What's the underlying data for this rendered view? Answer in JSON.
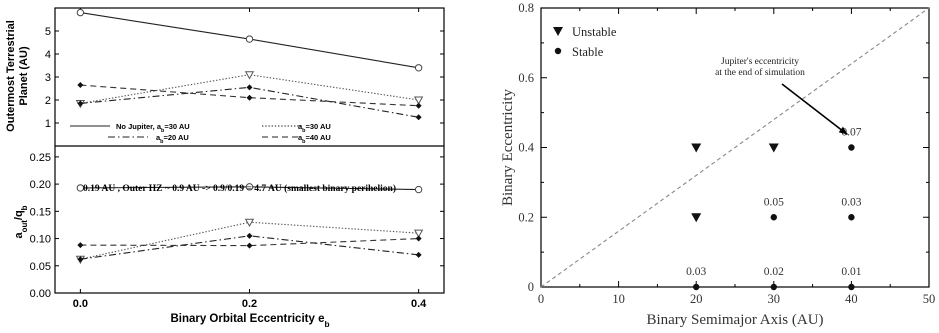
{
  "chart_data": [
    {
      "id": "left-top",
      "type": "line",
      "x": [
        0.0,
        0.2,
        0.4
      ],
      "ylabel": "Outermost Terrestrial Planet (AU)",
      "ylabel_lines": [
        "Outermost Terrestrial",
        "Planet (AU)"
      ],
      "xlim": [
        -0.03,
        0.43
      ],
      "ylim": [
        0,
        6
      ],
      "yticks": [
        0,
        1,
        2,
        3,
        4,
        5
      ],
      "xticks": [
        0.0,
        0.2,
        0.4
      ],
      "series": [
        {
          "name": "No Jupiter, a_b=30 AU",
          "style": "solid",
          "marker": "open-circle",
          "values": [
            5.8,
            4.65,
            3.4
          ]
        },
        {
          "name": "a_b=30 AU",
          "style": "dotted",
          "marker": "open-triangle-down",
          "values": [
            1.85,
            3.1,
            2.0
          ]
        },
        {
          "name": "a_b=20 AU",
          "style": "dashdot",
          "marker": "filled-diamond",
          "values": [
            1.85,
            2.55,
            1.25
          ]
        },
        {
          "name": "a_b=40 AU",
          "style": "dashed",
          "marker": "filled-diamond",
          "values": [
            2.65,
            2.1,
            1.75
          ]
        }
      ],
      "legend": {
        "placement": "bottom",
        "entries": [
          {
            "pre": "No Jupiter, a",
            "sub": "b",
            "post": "=30 AU"
          },
          {
            "pre": "a",
            "sub": "b",
            "post": "=30 AU"
          },
          {
            "pre": "a",
            "sub": "b",
            "post": "=20 AU"
          },
          {
            "pre": "a",
            "sub": "b",
            "post": "=40 AU"
          }
        ]
      },
      "grid": false
    },
    {
      "id": "left-bottom",
      "type": "line",
      "x": [
        0.0,
        0.2,
        0.4
      ],
      "xlabel": "Binary Orbital Eccentricity e_b",
      "xlabel_parts": {
        "pre": "Binary Orbital Eccentricity e",
        "sub": "b"
      },
      "ylabel": "a_out/q_b",
      "ylabel_parts": {
        "a": "a",
        "sub1": "out",
        "mid": "/q",
        "sub2": "b"
      },
      "xlim": [
        -0.03,
        0.43
      ],
      "ylim": [
        0,
        0.27
      ],
      "yticks": [
        "0.00",
        "0.05",
        "0.10",
        "0.15",
        "0.20",
        "0.25"
      ],
      "xticks": [
        "0.0",
        "0.2",
        "0.4"
      ],
      "annotation": "0.19 AU ,  Outer HZ ~ 0.9 AU -> 0.9/0.19 = 4.7 AU (smallest binary perihelion)",
      "series": [
        {
          "name": "No Jupiter, a_b=30 AU",
          "style": "solid",
          "marker": "open-circle",
          "values": [
            0.193,
            0.195,
            0.19
          ]
        },
        {
          "name": "a_b=30 AU",
          "style": "dotted",
          "marker": "open-triangle-down",
          "values": [
            0.062,
            0.13,
            0.11
          ]
        },
        {
          "name": "a_b=20 AU",
          "style": "dashdot",
          "marker": "filled-diamond",
          "values": [
            0.062,
            0.105,
            0.07
          ]
        },
        {
          "name": "a_b=40 AU",
          "style": "dashed",
          "marker": "filled-diamond",
          "values": [
            0.088,
            0.087,
            0.1
          ]
        }
      ],
      "grid": false
    },
    {
      "id": "right",
      "type": "scatter",
      "xlabel": "Binary Semimajor Axis (AU)",
      "ylabel": "Binary Eccentricity",
      "xlim": [
        0,
        50
      ],
      "ylim": [
        0,
        0.8
      ],
      "xticks": [
        "0",
        "10",
        "20",
        "30",
        "40",
        "50"
      ],
      "yticks": [
        "0",
        "0.2",
        "0.4",
        "0.6",
        "0.8"
      ],
      "legend": {
        "placement": "top-left",
        "entries": [
          "Unstable",
          "Stable"
        ]
      },
      "series": [
        {
          "name": "Unstable",
          "marker": "filled-triangle-down",
          "points": [
            [
              20,
              0.4
            ],
            [
              20,
              0.2
            ],
            [
              30,
              0.4
            ]
          ]
        },
        {
          "name": "Stable",
          "marker": "filled-circle",
          "points": [
            [
              20,
              0.0
            ],
            [
              30,
              0.0
            ],
            [
              40,
              0.0
            ],
            [
              30,
              0.2
            ],
            [
              40,
              0.2
            ],
            [
              40,
              0.4
            ]
          ]
        }
      ],
      "labels": [
        {
          "x": 20,
          "y": 0.0,
          "text": "0.03"
        },
        {
          "x": 30,
          "y": 0.0,
          "text": "0.02"
        },
        {
          "x": 40,
          "y": 0.0,
          "text": "0.01"
        },
        {
          "x": 30,
          "y": 0.2,
          "text": "0.05"
        },
        {
          "x": 40,
          "y": 0.2,
          "text": "0.03"
        },
        {
          "x": 40,
          "y": 0.4,
          "text": "0.07"
        }
      ],
      "reference_line": {
        "from": [
          0,
          0
        ],
        "to": [
          50,
          0.8
        ],
        "style": "dashed"
      },
      "annotation": {
        "lines": [
          "Jupiter's eccentricity",
          "at the end of simulation"
        ],
        "arrow_to": [
          40,
          0.42
        ]
      },
      "grid": false
    }
  ]
}
